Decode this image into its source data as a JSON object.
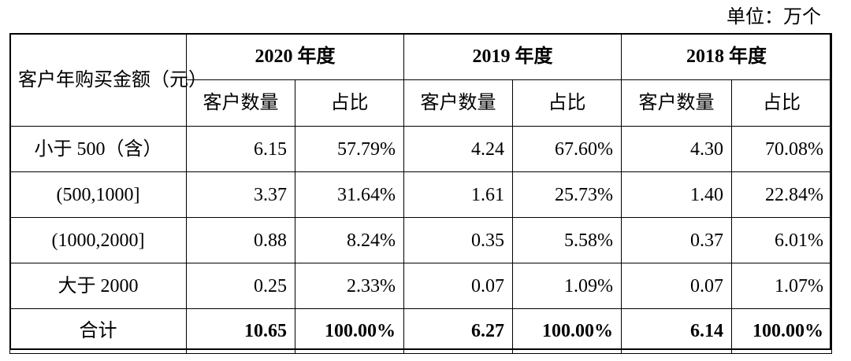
{
  "unit_label": "单位：万个",
  "header": {
    "row_label": "客户年购买金额（元）",
    "years": [
      "2020 年度",
      "2019 年度",
      "2018 年度"
    ],
    "count_label": "客户数量",
    "share_label": "占比"
  },
  "rows": [
    {
      "label": "小于 500（含）",
      "v2020": "6.15",
      "p2020": "57.79%",
      "v2019": "4.24",
      "p2019": "67.60%",
      "v2018": "4.30",
      "p2018": "70.08%"
    },
    {
      "label": "(500,1000]",
      "v2020": "3.37",
      "p2020": "31.64%",
      "v2019": "1.61",
      "p2019": "25.73%",
      "v2018": "1.40",
      "p2018": "22.84%"
    },
    {
      "label": "(1000,2000]",
      "v2020": "0.88",
      "p2020": "8.24%",
      "v2019": "0.35",
      "p2019": "5.58%",
      "v2018": "0.37",
      "p2018": "6.01%"
    },
    {
      "label": "大于 2000",
      "v2020": "0.25",
      "p2020": "2.33%",
      "v2019": "0.07",
      "p2019": "1.09%",
      "v2018": "0.07",
      "p2018": "1.07%"
    }
  ],
  "total": {
    "label": "合计",
    "v2020": "10.65",
    "p2020": "100.00%",
    "v2019": "6.27",
    "p2019": "100.00%",
    "v2018": "6.14",
    "p2018": "100.00%"
  }
}
